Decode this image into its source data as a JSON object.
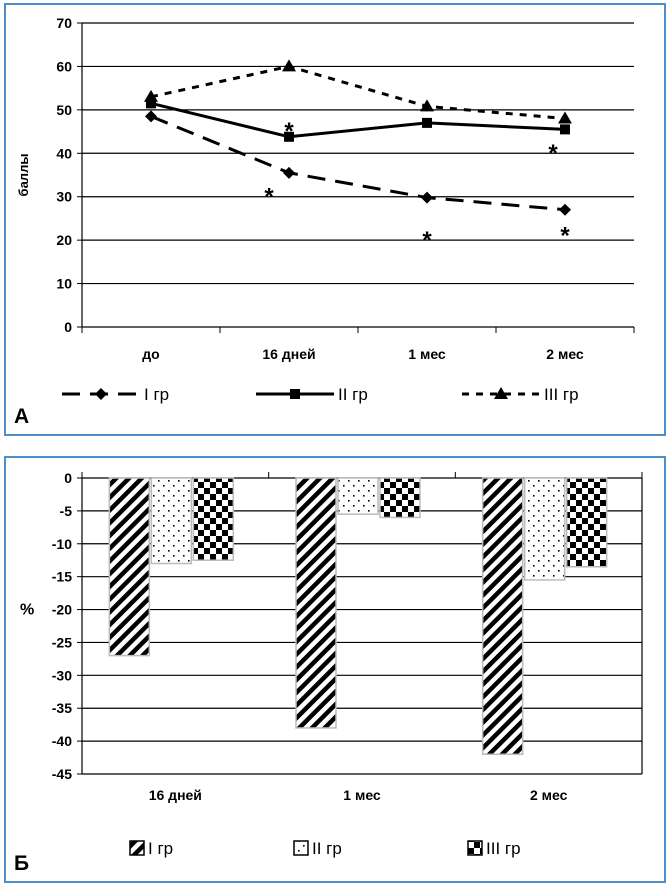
{
  "chart_data": [
    {
      "type": "line",
      "panel_label": "А",
      "ylabel": "баллы",
      "xlabel": "",
      "categories": [
        "до",
        "16 дней",
        "1 мес",
        "2 мес"
      ],
      "ylim": [
        0,
        70
      ],
      "yticks": [
        0,
        10,
        20,
        30,
        40,
        50,
        60,
        70
      ],
      "grid": true,
      "legend_position": "bottom",
      "series": [
        {
          "name": "I гр",
          "values": [
            48.5,
            35.5,
            29.8,
            27.0
          ],
          "marker": "diamond",
          "line": "long-dash",
          "color": "#000000"
        },
        {
          "name": "II гр",
          "values": [
            51.5,
            43.8,
            47.0,
            45.5
          ],
          "marker": "square",
          "line": "solid",
          "color": "#000000"
        },
        {
          "name": "III гр",
          "values": [
            53.0,
            60.0,
            50.8,
            48.0
          ],
          "marker": "triangle",
          "line": "short-dash",
          "color": "#000000"
        }
      ],
      "annotations": [
        {
          "text": "*",
          "x": "16 дней",
          "y": 31
        },
        {
          "text": "*",
          "x": "16 дней",
          "y": 46
        },
        {
          "text": "*",
          "x": "1 мес",
          "y": 21
        },
        {
          "text": "*",
          "x": "2 мес",
          "y": 41
        },
        {
          "text": "*",
          "x": "2 мес",
          "y": 22
        }
      ]
    },
    {
      "type": "bar",
      "panel_label": "Б",
      "ylabel": "%",
      "xlabel": "",
      "categories": [
        "16 дней",
        "1 мес",
        "2 мес"
      ],
      "ylim": [
        -45,
        0
      ],
      "yticks": [
        0,
        -5,
        -10,
        -15,
        -20,
        -25,
        -30,
        -35,
        -40,
        -45
      ],
      "grid": true,
      "legend_position": "bottom",
      "series": [
        {
          "name": "I гр",
          "values": [
            -27,
            -38,
            -42
          ],
          "pattern": "diagonal-stripes"
        },
        {
          "name": "II гр",
          "values": [
            -13,
            -5.5,
            -15.5
          ],
          "pattern": "dots"
        },
        {
          "name": "III гр",
          "values": [
            -12.5,
            -6,
            -13.5
          ],
          "pattern": "checkerboard"
        }
      ]
    }
  ]
}
